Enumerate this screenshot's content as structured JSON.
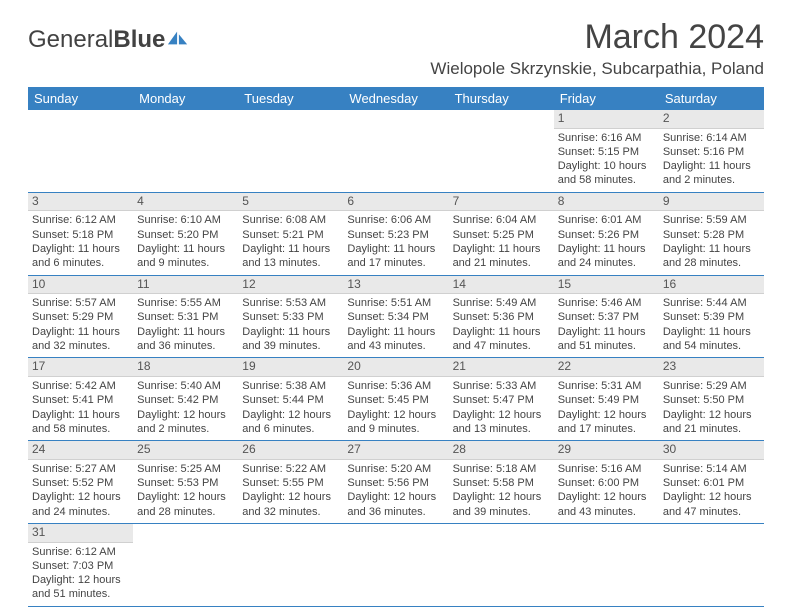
{
  "logo": {
    "part1": "General",
    "part2": "Blue"
  },
  "title": "March 2024",
  "location": "Wielopole Skrzynskie, Subcarpathia, Poland",
  "colors": {
    "header_bg": "#3781c2",
    "header_fg": "#ffffff",
    "daynum_bg": "#e9e9e9",
    "divider": "#3781c2",
    "logo_icon": "#3781c2"
  },
  "typography": {
    "title_fontsize": 34,
    "location_fontsize": 17,
    "th_fontsize": 13,
    "cell_fontsize": 11
  },
  "day_headers": [
    "Sunday",
    "Monday",
    "Tuesday",
    "Wednesday",
    "Thursday",
    "Friday",
    "Saturday"
  ],
  "weeks": [
    [
      null,
      null,
      null,
      null,
      null,
      {
        "n": "1",
        "sr": "Sunrise: 6:16 AM",
        "ss": "Sunset: 5:15 PM",
        "dl": "Daylight: 10 hours and 58 minutes."
      },
      {
        "n": "2",
        "sr": "Sunrise: 6:14 AM",
        "ss": "Sunset: 5:16 PM",
        "dl": "Daylight: 11 hours and 2 minutes."
      }
    ],
    [
      {
        "n": "3",
        "sr": "Sunrise: 6:12 AM",
        "ss": "Sunset: 5:18 PM",
        "dl": "Daylight: 11 hours and 6 minutes."
      },
      {
        "n": "4",
        "sr": "Sunrise: 6:10 AM",
        "ss": "Sunset: 5:20 PM",
        "dl": "Daylight: 11 hours and 9 minutes."
      },
      {
        "n": "5",
        "sr": "Sunrise: 6:08 AM",
        "ss": "Sunset: 5:21 PM",
        "dl": "Daylight: 11 hours and 13 minutes."
      },
      {
        "n": "6",
        "sr": "Sunrise: 6:06 AM",
        "ss": "Sunset: 5:23 PM",
        "dl": "Daylight: 11 hours and 17 minutes."
      },
      {
        "n": "7",
        "sr": "Sunrise: 6:04 AM",
        "ss": "Sunset: 5:25 PM",
        "dl": "Daylight: 11 hours and 21 minutes."
      },
      {
        "n": "8",
        "sr": "Sunrise: 6:01 AM",
        "ss": "Sunset: 5:26 PM",
        "dl": "Daylight: 11 hours and 24 minutes."
      },
      {
        "n": "9",
        "sr": "Sunrise: 5:59 AM",
        "ss": "Sunset: 5:28 PM",
        "dl": "Daylight: 11 hours and 28 minutes."
      }
    ],
    [
      {
        "n": "10",
        "sr": "Sunrise: 5:57 AM",
        "ss": "Sunset: 5:29 PM",
        "dl": "Daylight: 11 hours and 32 minutes."
      },
      {
        "n": "11",
        "sr": "Sunrise: 5:55 AM",
        "ss": "Sunset: 5:31 PM",
        "dl": "Daylight: 11 hours and 36 minutes."
      },
      {
        "n": "12",
        "sr": "Sunrise: 5:53 AM",
        "ss": "Sunset: 5:33 PM",
        "dl": "Daylight: 11 hours and 39 minutes."
      },
      {
        "n": "13",
        "sr": "Sunrise: 5:51 AM",
        "ss": "Sunset: 5:34 PM",
        "dl": "Daylight: 11 hours and 43 minutes."
      },
      {
        "n": "14",
        "sr": "Sunrise: 5:49 AM",
        "ss": "Sunset: 5:36 PM",
        "dl": "Daylight: 11 hours and 47 minutes."
      },
      {
        "n": "15",
        "sr": "Sunrise: 5:46 AM",
        "ss": "Sunset: 5:37 PM",
        "dl": "Daylight: 11 hours and 51 minutes."
      },
      {
        "n": "16",
        "sr": "Sunrise: 5:44 AM",
        "ss": "Sunset: 5:39 PM",
        "dl": "Daylight: 11 hours and 54 minutes."
      }
    ],
    [
      {
        "n": "17",
        "sr": "Sunrise: 5:42 AM",
        "ss": "Sunset: 5:41 PM",
        "dl": "Daylight: 11 hours and 58 minutes."
      },
      {
        "n": "18",
        "sr": "Sunrise: 5:40 AM",
        "ss": "Sunset: 5:42 PM",
        "dl": "Daylight: 12 hours and 2 minutes."
      },
      {
        "n": "19",
        "sr": "Sunrise: 5:38 AM",
        "ss": "Sunset: 5:44 PM",
        "dl": "Daylight: 12 hours and 6 minutes."
      },
      {
        "n": "20",
        "sr": "Sunrise: 5:36 AM",
        "ss": "Sunset: 5:45 PM",
        "dl": "Daylight: 12 hours and 9 minutes."
      },
      {
        "n": "21",
        "sr": "Sunrise: 5:33 AM",
        "ss": "Sunset: 5:47 PM",
        "dl": "Daylight: 12 hours and 13 minutes."
      },
      {
        "n": "22",
        "sr": "Sunrise: 5:31 AM",
        "ss": "Sunset: 5:49 PM",
        "dl": "Daylight: 12 hours and 17 minutes."
      },
      {
        "n": "23",
        "sr": "Sunrise: 5:29 AM",
        "ss": "Sunset: 5:50 PM",
        "dl": "Daylight: 12 hours and 21 minutes."
      }
    ],
    [
      {
        "n": "24",
        "sr": "Sunrise: 5:27 AM",
        "ss": "Sunset: 5:52 PM",
        "dl": "Daylight: 12 hours and 24 minutes."
      },
      {
        "n": "25",
        "sr": "Sunrise: 5:25 AM",
        "ss": "Sunset: 5:53 PM",
        "dl": "Daylight: 12 hours and 28 minutes."
      },
      {
        "n": "26",
        "sr": "Sunrise: 5:22 AM",
        "ss": "Sunset: 5:55 PM",
        "dl": "Daylight: 12 hours and 32 minutes."
      },
      {
        "n": "27",
        "sr": "Sunrise: 5:20 AM",
        "ss": "Sunset: 5:56 PM",
        "dl": "Daylight: 12 hours and 36 minutes."
      },
      {
        "n": "28",
        "sr": "Sunrise: 5:18 AM",
        "ss": "Sunset: 5:58 PM",
        "dl": "Daylight: 12 hours and 39 minutes."
      },
      {
        "n": "29",
        "sr": "Sunrise: 5:16 AM",
        "ss": "Sunset: 6:00 PM",
        "dl": "Daylight: 12 hours and 43 minutes."
      },
      {
        "n": "30",
        "sr": "Sunrise: 5:14 AM",
        "ss": "Sunset: 6:01 PM",
        "dl": "Daylight: 12 hours and 47 minutes."
      }
    ],
    [
      {
        "n": "31",
        "sr": "Sunrise: 6:12 AM",
        "ss": "Sunset: 7:03 PM",
        "dl": "Daylight: 12 hours and 51 minutes."
      },
      null,
      null,
      null,
      null,
      null,
      null
    ]
  ]
}
